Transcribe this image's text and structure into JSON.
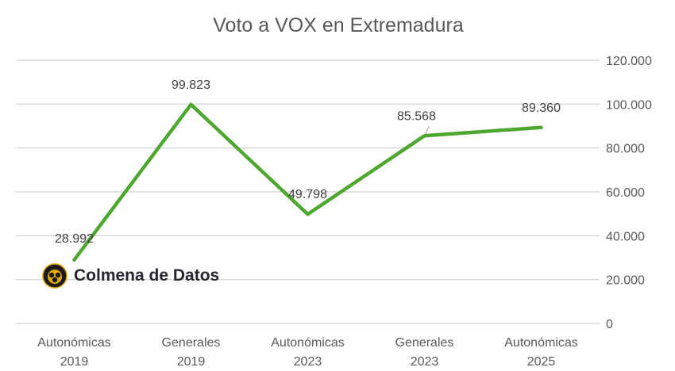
{
  "chart_data": {
    "type": "line",
    "title": "Voto a VOX en Extremadura",
    "categories": [
      [
        "Autonómicas",
        "2019"
      ],
      [
        "Generales",
        "2019"
      ],
      [
        "Autonómicas",
        "2023"
      ],
      [
        "Generales",
        "2023"
      ],
      [
        "Autonómicas",
        "2025"
      ]
    ],
    "series": [
      {
        "values": [
          28992,
          99823,
          49798,
          85568,
          89360
        ],
        "color": "#4ea72e"
      }
    ],
    "data_labels": [
      "28.992",
      "99.823",
      "49.798",
      "85.568",
      "89.360"
    ],
    "yaxis": {
      "position": "right",
      "range": [
        0,
        120000
      ],
      "ticks": [
        0,
        20000,
        40000,
        60000,
        80000,
        100000,
        120000
      ],
      "tick_labels": [
        "0",
        "20.000",
        "40.000",
        "60.000",
        "80.000",
        "100.000",
        "120.000"
      ]
    },
    "grid": true,
    "gridline_color": "#d9d9d9"
  },
  "watermark": {
    "text": "Colmena de Datos"
  }
}
